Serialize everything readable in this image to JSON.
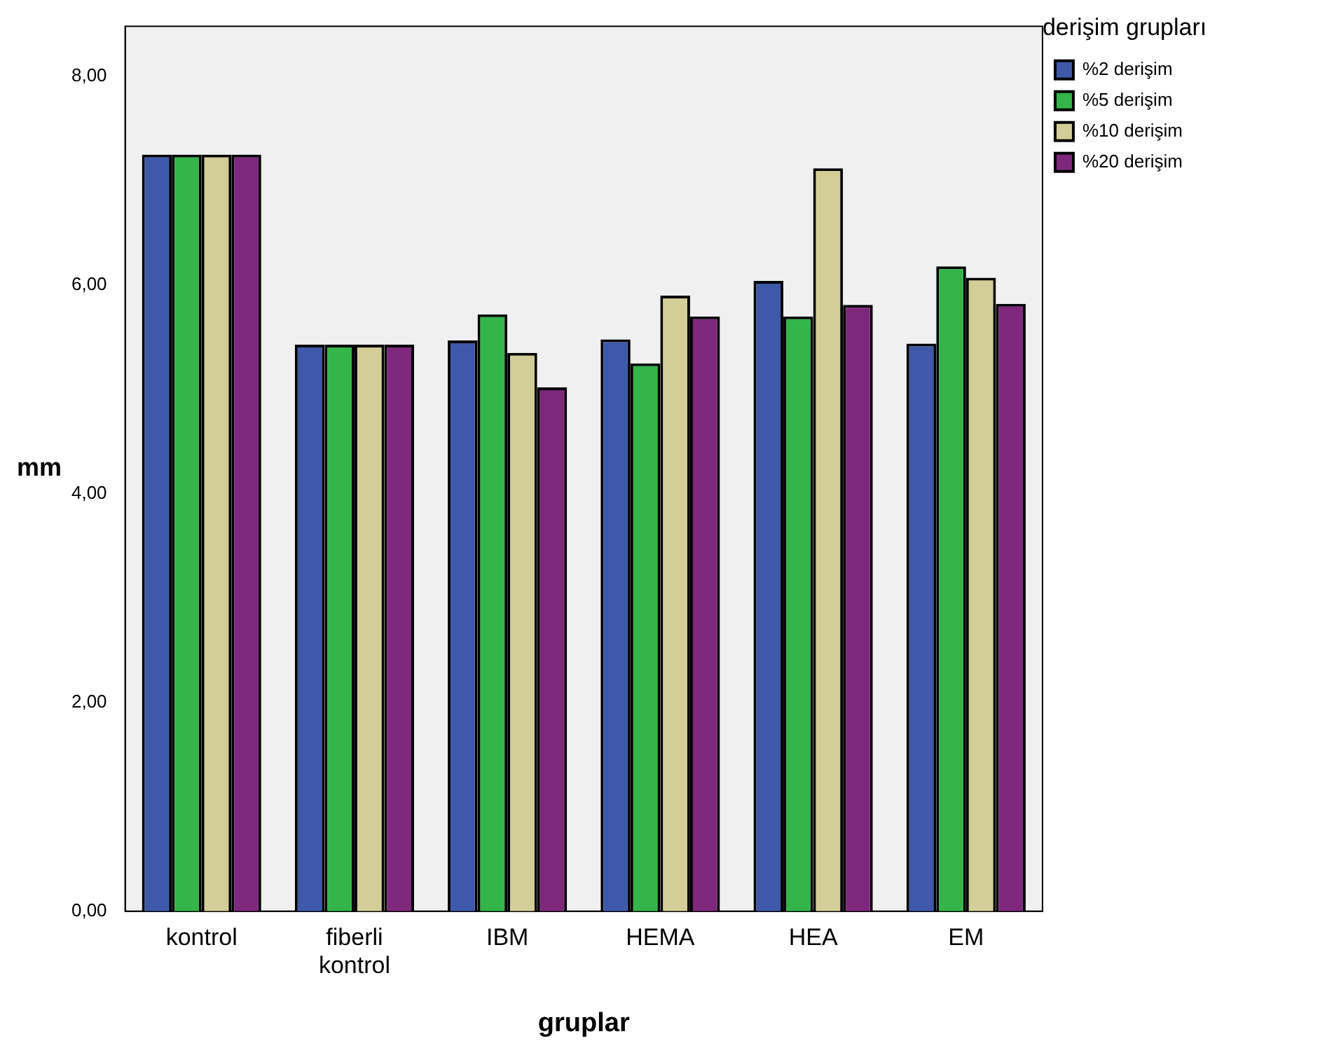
{
  "chart_data": {
    "type": "bar",
    "xlabel": "gruplar",
    "ylabel": "mm",
    "legend_title": "derişim grupları",
    "legend": "top right",
    "grid": false,
    "categories": [
      "kontrol",
      "fiberli kontrol",
      "IBM",
      "HEMA",
      "HEA",
      "EM"
    ],
    "ylim": [
      0,
      8.48
    ],
    "yticks": [
      {
        "value": 0,
        "label": "0,00"
      },
      {
        "value": 2,
        "label": "2,00"
      },
      {
        "value": 4,
        "label": "4,00"
      },
      {
        "value": 6,
        "label": "6,00"
      },
      {
        "value": 8,
        "label": "8,00"
      }
    ],
    "series": [
      {
        "name": "%2 derişim",
        "color": "#3f59aa",
        "values": [
          7.25,
          5.43,
          5.47,
          5.48,
          6.04,
          5.44
        ]
      },
      {
        "name": "%5 derişim",
        "color": "#33b54a",
        "values": [
          7.25,
          5.43,
          5.72,
          5.25,
          5.7,
          6.18
        ]
      },
      {
        "name": "%10 derişim",
        "color": "#d3ce97",
        "values": [
          7.25,
          5.43,
          5.35,
          5.9,
          7.12,
          6.07
        ]
      },
      {
        "name": "%20 derişim",
        "color": "#7d287d",
        "values": [
          7.25,
          5.43,
          5.02,
          5.7,
          5.81,
          5.82
        ]
      }
    ]
  }
}
